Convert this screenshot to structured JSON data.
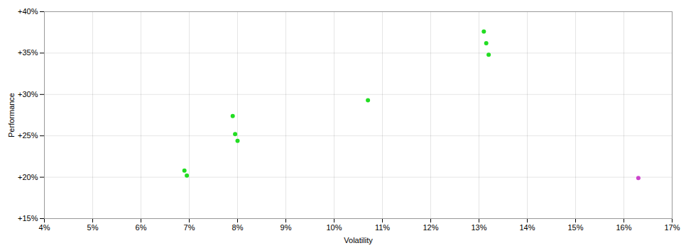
{
  "chart_data": {
    "type": "scatter",
    "xlabel": "Volatility",
    "ylabel": "Performance",
    "xlim": [
      0.04,
      0.17
    ],
    "ylim": [
      0.15,
      0.4
    ],
    "xticks": [
      {
        "value": 0.04,
        "label": "4%"
      },
      {
        "value": 0.05,
        "label": "5%"
      },
      {
        "value": 0.06,
        "label": "6%"
      },
      {
        "value": 0.07,
        "label": "7%"
      },
      {
        "value": 0.08,
        "label": "8%"
      },
      {
        "value": 0.09,
        "label": "9%"
      },
      {
        "value": 0.1,
        "label": "10%"
      },
      {
        "value": 0.11,
        "label": "11%"
      },
      {
        "value": 0.12,
        "label": "12%"
      },
      {
        "value": 0.13,
        "label": "13%"
      },
      {
        "value": 0.14,
        "label": "14%"
      },
      {
        "value": 0.15,
        "label": "15%"
      },
      {
        "value": 0.16,
        "label": "16%"
      },
      {
        "value": 0.17,
        "label": "17%"
      }
    ],
    "yticks": [
      {
        "value": 0.15,
        "label": "+15%"
      },
      {
        "value": 0.2,
        "label": "+20%"
      },
      {
        "value": 0.25,
        "label": "+25%"
      },
      {
        "value": 0.3,
        "label": "+30%"
      },
      {
        "value": 0.35,
        "label": "+35%"
      },
      {
        "value": 0.4,
        "label": "+40%"
      }
    ],
    "grid": true,
    "series": [
      {
        "color": "#22dd22",
        "x": [
          0.069,
          0.0695,
          0.079,
          0.0795,
          0.08,
          0.107,
          0.131,
          0.1315,
          0.132
        ],
        "values": [
          0.208,
          0.202,
          0.274,
          0.252,
          0.244,
          0.293,
          0.376,
          0.362,
          0.348
        ]
      },
      {
        "color": "#cc44cc",
        "x": [
          0.163
        ],
        "values": [
          0.199
        ]
      }
    ]
  }
}
